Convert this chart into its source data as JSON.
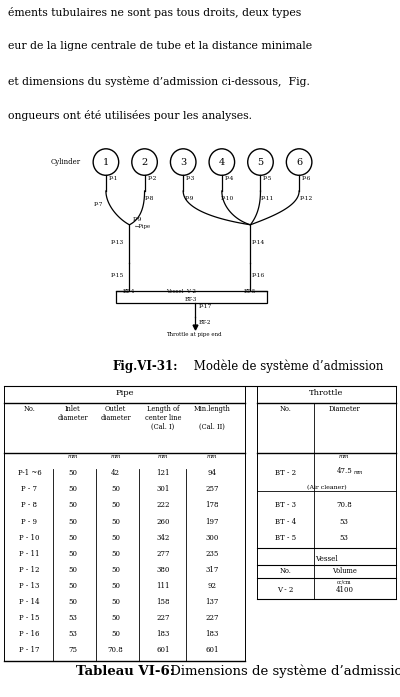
{
  "text_top": [
    "éments tubulaires ne sont pas tous droits, deux types",
    "eur de la ligne centrale de tube et la distance minimale",
    "et dimensions du système d’admission ci-dessous,  Fig.",
    "ongueurs ont été utilisées pour les analyses."
  ],
  "fig_caption_bold": "Fig.VI-31:",
  "fig_caption_normal": " Modèle de système d’admission",
  "table_caption_bold": "Tableau VI-6:",
  "table_caption_normal": " Dimensions de système d’admission",
  "pipe_rows": [
    [
      "P-1 ~6",
      "50",
      "42",
      "121",
      "94"
    ],
    [
      "P - 7",
      "50",
      "50",
      "301",
      "257"
    ],
    [
      "P - 8",
      "50",
      "50",
      "222",
      "178"
    ],
    [
      "P - 9",
      "50",
      "50",
      "260",
      "197"
    ],
    [
      "P - 10",
      "50",
      "50",
      "342",
      "300"
    ],
    [
      "P - 11",
      "50",
      "50",
      "277",
      "235"
    ],
    [
      "P - 12",
      "50",
      "50",
      "380",
      "317"
    ],
    [
      "P - 13",
      "50",
      "50",
      "111",
      "92"
    ],
    [
      "P - 14",
      "50",
      "50",
      "158",
      "137"
    ],
    [
      "P - 15",
      "53",
      "50",
      "227",
      "227"
    ],
    [
      "P - 16",
      "53",
      "50",
      "183",
      "183"
    ],
    [
      "P - 17",
      "75",
      "70.8",
      "601",
      "601"
    ]
  ]
}
